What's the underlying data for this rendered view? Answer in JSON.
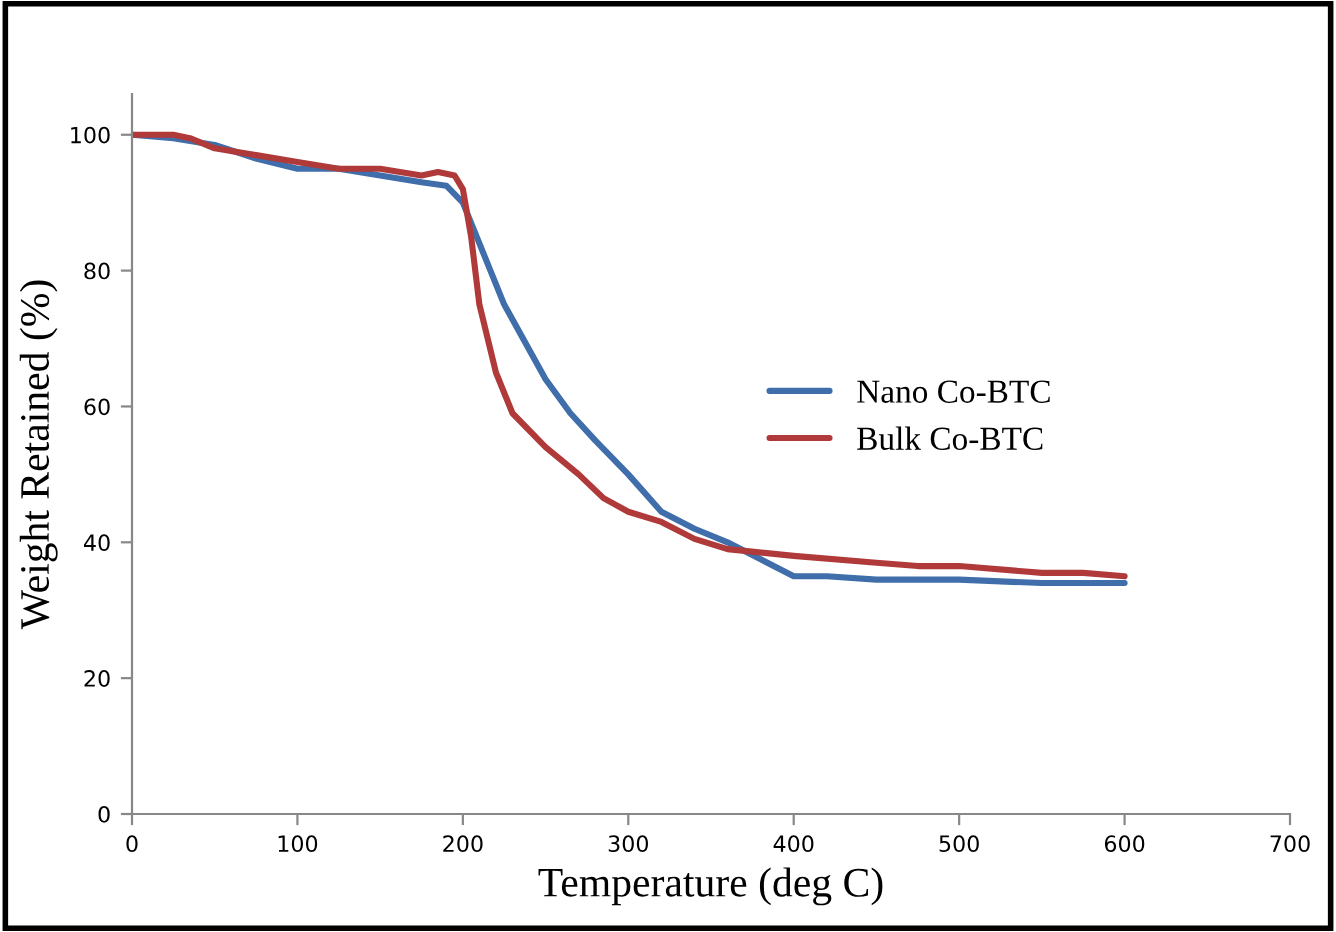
{
  "chart_data": {
    "type": "line",
    "xlabel": "Temperature (deg C)",
    "ylabel": "Weight Retained (%)",
    "xlim": [
      0,
      700
    ],
    "xticks": [
      0,
      100,
      200,
      300,
      400,
      500,
      600,
      700
    ],
    "ylim": [
      0,
      106
    ],
    "yticks": [
      0,
      20,
      40,
      60,
      80,
      100
    ],
    "grid": false,
    "legend": "right",
    "marker": "none",
    "line_style": "solid",
    "series": [
      {
        "name": "Nano Co-BTC",
        "color": "#3f6eaa",
        "x": [
          0,
          25,
          50,
          75,
          100,
          125,
          150,
          175,
          190,
          200,
          210,
          225,
          250,
          265,
          280,
          300,
          320,
          340,
          360,
          380,
          400,
          420,
          450,
          500,
          550,
          600
        ],
        "values": [
          100,
          99.5,
          98.5,
          96.5,
          95,
          95,
          94,
          93,
          92.5,
          90,
          84,
          75,
          64,
          59,
          55,
          50,
          44.5,
          42,
          40,
          37.5,
          35,
          35,
          34.5,
          34.5,
          34,
          34
        ]
      },
      {
        "name": "Bulk Co-BTC",
        "color": "#b03a3a",
        "x": [
          0,
          25,
          35,
          50,
          75,
          100,
          125,
          150,
          175,
          185,
          195,
          200,
          205,
          210,
          220,
          230,
          250,
          270,
          285,
          300,
          320,
          340,
          360,
          400,
          450,
          475,
          500,
          550,
          575,
          600
        ],
        "values": [
          100,
          100,
          99.5,
          98,
          97,
          96,
          95,
          95,
          94,
          94.5,
          94,
          92,
          85,
          75,
          65,
          59,
          54,
          50,
          46.5,
          44.5,
          43,
          40.5,
          39,
          38,
          37,
          36.5,
          36.5,
          35.5,
          35.5,
          35
        ]
      }
    ]
  }
}
